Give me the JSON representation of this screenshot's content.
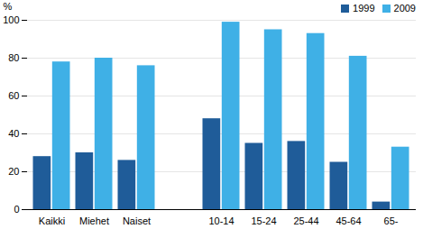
{
  "chart_data": {
    "type": "bar",
    "y_label": "%",
    "categories": [
      "Kaikki",
      "Miehet",
      "Naiset",
      null,
      "10-14",
      "15-24",
      "25-44",
      "45-64",
      "65-"
    ],
    "series": [
      {
        "name": "1999",
        "color": "#1f5c99",
        "values": [
          28,
          30,
          26,
          null,
          48,
          35,
          36,
          25,
          4
        ]
      },
      {
        "name": "2009",
        "color": "#3fb0e6",
        "values": [
          78,
          80,
          76,
          null,
          99,
          95,
          93,
          81,
          33
        ]
      }
    ],
    "ylim": [
      0,
      100
    ],
    "yticks": [
      0,
      20,
      40,
      60,
      80,
      100
    ],
    "grid": true,
    "legend": "top-right"
  }
}
